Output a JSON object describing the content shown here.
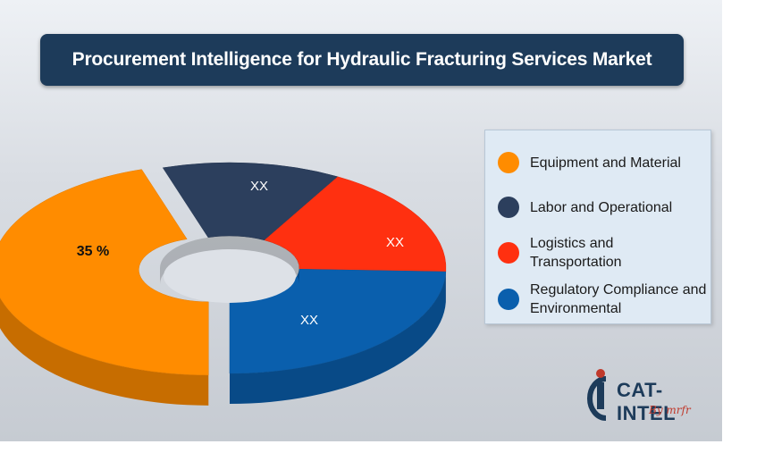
{
  "title": "Procurement Intelligence for Hydraulic Fracturing Services Market",
  "chart_data": {
    "type": "pie",
    "title": "Procurement Intelligence for Hydraulic Fracturing Services Market",
    "categories": [
      "Equipment and Material",
      "Labor and Operational",
      "Logistics and Transportation",
      "Regulatory Compliance and Environmental"
    ],
    "values": [
      35,
      null,
      null,
      null
    ],
    "data_labels": [
      "35 %",
      "XX",
      "XX",
      "XX"
    ],
    "colors": [
      "#ff8c00",
      "#2c3f5d",
      "#ff3010",
      "#0a5fad"
    ],
    "legend_position": "right",
    "style": "3d-donut"
  },
  "legend": {
    "items": [
      {
        "label": "Equipment and Material",
        "color": "#ff8c00"
      },
      {
        "label": "Labor and Operational",
        "color": "#2c3f5d"
      },
      {
        "label": "Logistics and Transportation",
        "color": "#ff3010"
      },
      {
        "label": "Regulatory Compliance and Environmental",
        "color": "#0a5fad"
      }
    ]
  },
  "logo": {
    "text": "CAT-INTEL",
    "sub": "By mrfr"
  }
}
